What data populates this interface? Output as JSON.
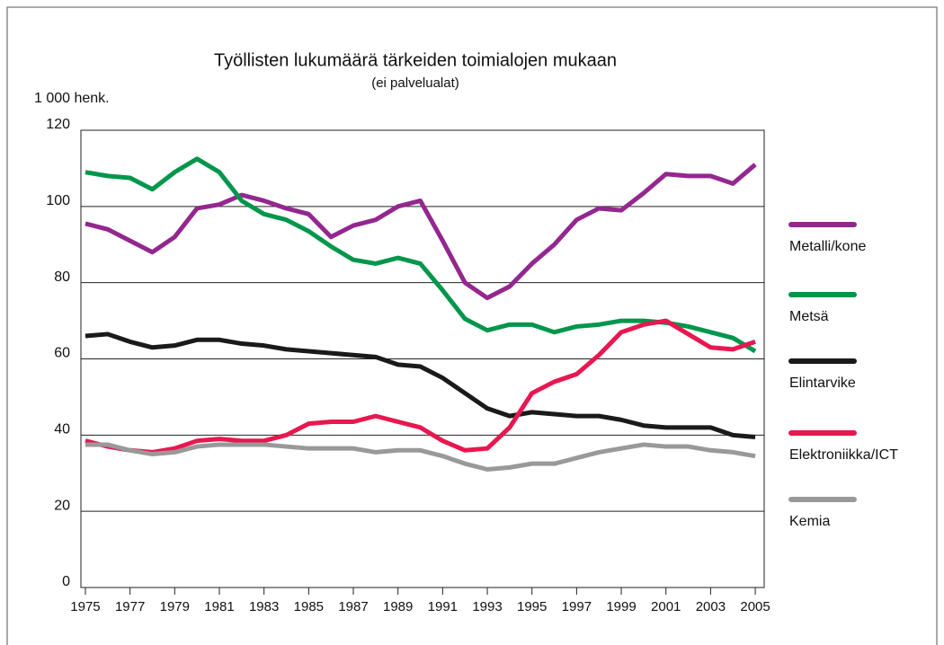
{
  "chart_data": {
    "type": "line",
    "title": "Työllisten lukumäärä tärkeiden toimialojen mukaan",
    "subtitle": "(ei palvelualat)",
    "y_label": "1 000 henk.",
    "x": [
      1975,
      1976,
      1977,
      1978,
      1979,
      1980,
      1981,
      1982,
      1983,
      1984,
      1985,
      1986,
      1987,
      1988,
      1989,
      1990,
      1991,
      1992,
      1993,
      1994,
      1995,
      1996,
      1997,
      1998,
      1999,
      2000,
      2001,
      2002,
      2003,
      2004,
      2005
    ],
    "series": [
      {
        "name": "Metalli/kone",
        "color": "#93278f",
        "values": [
          95.5,
          94,
          91,
          88,
          92,
          99.5,
          100.5,
          103,
          101.5,
          99.5,
          98,
          92,
          95,
          96.5,
          100,
          101.5,
          91,
          80,
          76,
          79,
          85,
          90,
          96.5,
          99.5,
          99,
          103.5,
          108.5,
          108,
          108,
          106,
          111
        ]
      },
      {
        "name": "Metsä",
        "color": "#00964b",
        "values": [
          109,
          108,
          107.5,
          104.5,
          109,
          112.5,
          109,
          101.5,
          98,
          96.5,
          93.5,
          89.5,
          86,
          85,
          86.5,
          85,
          78,
          70.5,
          67.5,
          69,
          69,
          67,
          68.5,
          69,
          70,
          70,
          69.5,
          68.5,
          67,
          65.5,
          62
        ]
      },
      {
        "name": "Elintarvike",
        "color": "#1a1a1a",
        "values": [
          66,
          66.5,
          64.5,
          63,
          63.5,
          65,
          65,
          64,
          63.5,
          62.5,
          62,
          61.5,
          61,
          60.5,
          58.5,
          58,
          55,
          51,
          47,
          45,
          46,
          45.5,
          45,
          45,
          44,
          42.5,
          42,
          42,
          42,
          40,
          39.5
        ]
      },
      {
        "name": "Elektroniikka/ICT",
        "color": "#e8174f",
        "values": [
          38.5,
          37,
          36,
          35.5,
          36.5,
          38.5,
          39,
          38.5,
          38.5,
          40,
          43,
          43.5,
          43.5,
          45,
          43.5,
          42,
          38.5,
          36,
          36.5,
          42,
          51,
          54,
          56,
          61,
          67,
          69,
          70,
          66.5,
          63,
          62.5,
          64.5
        ]
      },
      {
        "name": "Kemia",
        "color": "#999999",
        "values": [
          37.5,
          37.5,
          36,
          35,
          35.5,
          37,
          37.5,
          37.5,
          37.5,
          37,
          36.5,
          36.5,
          36.5,
          35.5,
          36,
          36,
          34.5,
          32.5,
          31,
          31.5,
          32.5,
          32.5,
          34,
          35.5,
          36.5,
          37.5,
          37,
          37,
          36,
          35.5,
          34.5
        ]
      }
    ],
    "xlim": [
      1974.8,
      2005.4
    ],
    "xticks": [
      1975,
      1977,
      1979,
      1981,
      1983,
      1985,
      1987,
      1989,
      1991,
      1993,
      1995,
      1997,
      1999,
      2001,
      2003,
      2005
    ],
    "ylim": [
      0,
      120
    ],
    "yticks": [
      0,
      20,
      40,
      60,
      80,
      100,
      120
    ],
    "grid": true,
    "legend": "right"
  }
}
